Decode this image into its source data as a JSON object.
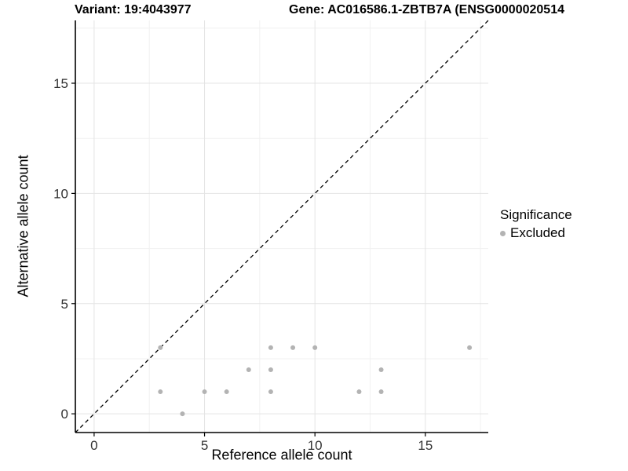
{
  "colors": {
    "point": "#b3b3b3",
    "grid_major": "#e4e4e4",
    "grid_minor": "#f1f1f1",
    "axis_line": "#000000",
    "diagonal_line": "#000000",
    "tick_text": "#333333"
  },
  "chart_data": {
    "type": "scatter",
    "title_left": "Variant: 19:4043977",
    "title_right": "Gene: AC016586.1-ZBTB7A (ENSG0000020514",
    "xlabel": "Reference allele count",
    "ylabel": "Alternative allele count",
    "xlim": [
      -0.85,
      17.85
    ],
    "ylim": [
      -0.85,
      17.85
    ],
    "xticks": [
      0,
      5,
      10,
      15
    ],
    "yticks": [
      0,
      5,
      10,
      15
    ],
    "minor_gridlines": [
      2.5,
      7.5,
      12.5,
      17.5
    ],
    "grid": true,
    "diagonal": {
      "slope": 1,
      "intercept": 0,
      "style": "dashed"
    },
    "series": [
      {
        "name": "Excluded",
        "points": [
          [
            3,
            3
          ],
          [
            8,
            3
          ],
          [
            9,
            3
          ],
          [
            10,
            3
          ],
          [
            17,
            3
          ],
          [
            7,
            2
          ],
          [
            8,
            2
          ],
          [
            13,
            2
          ],
          [
            3,
            1
          ],
          [
            5,
            1
          ],
          [
            6,
            1
          ],
          [
            8,
            1
          ],
          [
            12,
            1
          ],
          [
            13,
            1
          ],
          [
            4,
            0
          ]
        ]
      }
    ],
    "legend": {
      "title": "Significance",
      "position": "right",
      "items": [
        {
          "label": "Excluded",
          "color": "#b3b3b3"
        }
      ]
    }
  }
}
